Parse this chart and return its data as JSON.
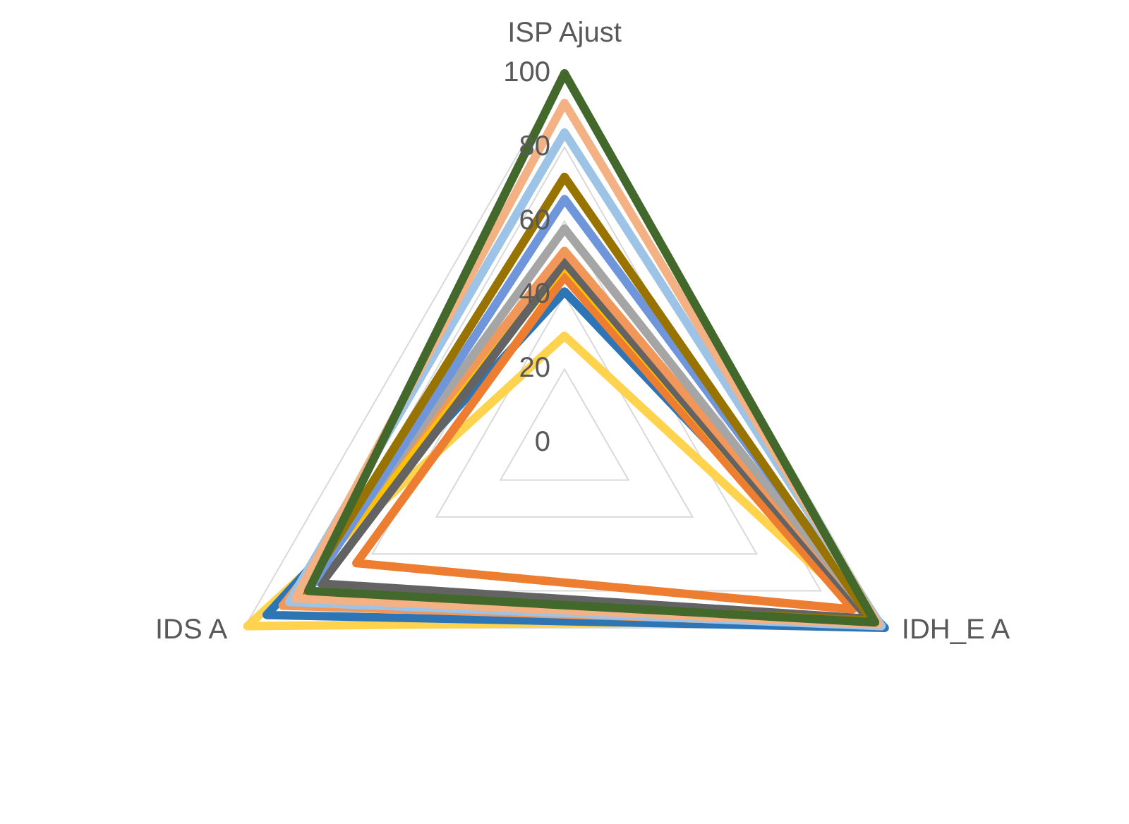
{
  "chart_data": {
    "type": "radar",
    "categories": [
      "ISP Ajust",
      "IDH_E A",
      "IDS A"
    ],
    "series": [
      {
        "color": "#43682b",
        "values": [
          100,
          97,
          80
        ]
      },
      {
        "color": "#f4b183",
        "values": [
          92,
          98,
          84
        ]
      },
      {
        "color": "#9dc3e6",
        "values": [
          84,
          99,
          86
        ]
      },
      {
        "color": "#997300",
        "values": [
          72,
          96,
          82
        ]
      },
      {
        "color": "#6f96da",
        "values": [
          66,
          99,
          80
        ]
      },
      {
        "color": "#a5a5a5",
        "values": [
          58,
          97,
          83
        ]
      },
      {
        "color": "#f1975a",
        "values": [
          52,
          98,
          88
        ]
      },
      {
        "color": "#636363",
        "values": [
          49,
          95,
          76
        ]
      },
      {
        "color": "#ffc000",
        "values": [
          48,
          96,
          85
        ]
      },
      {
        "color": "#ed7d31",
        "values": [
          45,
          90,
          65
        ]
      },
      {
        "color": "#2e75b6",
        "values": [
          41,
          100,
          93
        ]
      },
      {
        "color": "#ffd34d",
        "values": [
          29,
          96,
          99
        ]
      }
    ],
    "ylim": [
      0,
      100
    ],
    "yticks": [
      0,
      20,
      40,
      60,
      80,
      100
    ],
    "grid": true,
    "marker": "none"
  }
}
